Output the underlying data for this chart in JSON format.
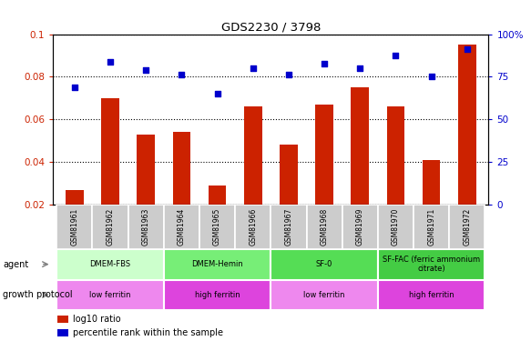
{
  "title": "GDS2230 / 3798",
  "samples": [
    "GSM81961",
    "GSM81962",
    "GSM81963",
    "GSM81964",
    "GSM81965",
    "GSM81966",
    "GSM81967",
    "GSM81968",
    "GSM81969",
    "GSM81970",
    "GSM81971",
    "GSM81972"
  ],
  "log10_ratio": [
    0.027,
    0.07,
    0.053,
    0.054,
    0.029,
    0.066,
    0.048,
    0.067,
    0.075,
    0.066,
    0.041,
    0.095
  ],
  "percentile_rank_left": [
    0.075,
    0.087,
    0.083,
    0.081,
    0.072,
    0.084,
    0.081,
    0.086,
    0.084,
    0.09,
    0.08,
    0.093
  ],
  "ylim_left": [
    0.02,
    0.1
  ],
  "ylim_right": [
    0,
    100
  ],
  "yticks_left": [
    0.02,
    0.04,
    0.06,
    0.08,
    0.1
  ],
  "ytick_labels_left": [
    "0.02",
    "0.04",
    "0.06",
    "0.08",
    "0.1"
  ],
  "ytick_labels_right": [
    "0",
    "25",
    "50",
    "75",
    "100%"
  ],
  "bar_color": "#cc2200",
  "scatter_color": "#0000cc",
  "agent_groups": [
    {
      "label": "DMEM-FBS",
      "start": 0,
      "end": 3,
      "color": "#ccffcc"
    },
    {
      "label": "DMEM-Hemin",
      "start": 3,
      "end": 6,
      "color": "#77ee77"
    },
    {
      "label": "SF-0",
      "start": 6,
      "end": 9,
      "color": "#55dd55"
    },
    {
      "label": "SF-FAC (ferric ammonium\ncitrate)",
      "start": 9,
      "end": 12,
      "color": "#44cc44"
    }
  ],
  "growth_groups": [
    {
      "label": "low ferritin",
      "start": 0,
      "end": 3,
      "color": "#ee88ee"
    },
    {
      "label": "high ferritin",
      "start": 3,
      "end": 6,
      "color": "#dd44dd"
    },
    {
      "label": "low ferritin",
      "start": 6,
      "end": 9,
      "color": "#ee88ee"
    },
    {
      "label": "high ferritin",
      "start": 9,
      "end": 12,
      "color": "#dd44dd"
    }
  ],
  "agent_label": "agent",
  "growth_label": "growth protocol",
  "legend_items": [
    {
      "color": "#cc2200",
      "label": "log10 ratio"
    },
    {
      "color": "#0000cc",
      "label": "percentile rank within the sample"
    }
  ],
  "background_color": "#ffffff",
  "sample_box_color": "#cccccc"
}
